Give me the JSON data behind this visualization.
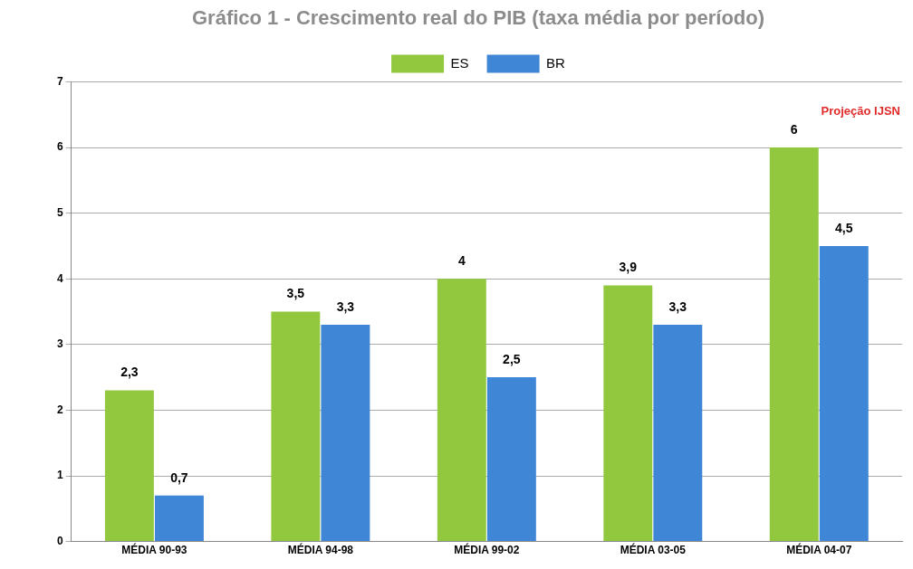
{
  "chart_data": {
    "type": "bar",
    "title": "Gráfico 1 - Crescimento real do PIB (taxa média por período)",
    "categories": [
      "MÉDIA 90-93",
      "MÉDIA 94-98",
      "MÉDIA 99-02",
      "MÉDIA 03-05",
      "MÉDIA 04-07"
    ],
    "series": [
      {
        "name": "ES",
        "color": "#92c83e",
        "values": [
          2.3,
          3.5,
          4,
          3.9,
          6
        ],
        "value_labels": [
          "2,3",
          "3,5",
          "4",
          "3,9",
          "6"
        ]
      },
      {
        "name": "BR",
        "color": "#3f86d6",
        "values": [
          0.7,
          3.3,
          2.5,
          3.3,
          4.5
        ],
        "value_labels": [
          "0,7",
          "3,3",
          "2,5",
          "3,3",
          "4,5"
        ]
      }
    ],
    "ylim": [
      0,
      7
    ],
    "yticks": [
      0,
      1,
      2,
      3,
      4,
      5,
      6,
      7
    ],
    "grid": "y",
    "legend": "top",
    "annotations": [
      "Projeção IJSN"
    ]
  }
}
